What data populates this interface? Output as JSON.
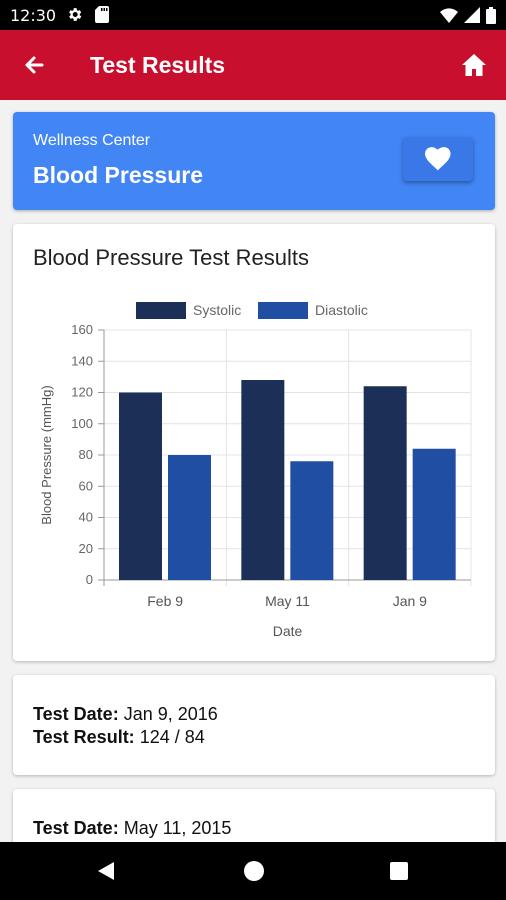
{
  "status_bar": {
    "time": "12:30",
    "icons": [
      "settings-icon",
      "sd-card-icon",
      "wifi-icon",
      "signal-icon",
      "battery-icon"
    ]
  },
  "app_bar": {
    "title": "Test Results",
    "back_icon": "arrow-back-icon",
    "home_icon": "home-icon",
    "color": "#c8102e"
  },
  "header": {
    "subtitle": "Wellness Center",
    "title": "Blood Pressure",
    "favorite_icon": "heart-icon",
    "color": "#4285f4"
  },
  "chart_card": {
    "title": "Blood Pressure Test Results"
  },
  "chart_data": {
    "type": "bar",
    "title": "Blood Pressure Test Results",
    "categories": [
      "Feb 9",
      "May 11",
      "Jan 9"
    ],
    "series": [
      {
        "name": "Systolic",
        "values": [
          120,
          128,
          124
        ],
        "color": "#1b2f57"
      },
      {
        "name": "Diastolic",
        "values": [
          80,
          76,
          84
        ],
        "color": "#1f4ea3"
      }
    ],
    "xlabel": "Date",
    "ylabel": "Blood Pressure (mmHg)",
    "ylim": [
      0,
      160
    ],
    "yticks": [
      0,
      20,
      40,
      60,
      80,
      100,
      120,
      140,
      160
    ],
    "grid": true,
    "legend": "top-center"
  },
  "results": [
    {
      "date_label": "Test Date:",
      "date": "Jan 9, 2016",
      "result_label": "Test Result:",
      "result": "124 / 84"
    },
    {
      "date_label": "Test Date:",
      "date": "May 11, 2015"
    }
  ],
  "nav_bar": {
    "icons": [
      "back-triangle-icon",
      "home-circle-icon",
      "recents-square-icon"
    ]
  }
}
